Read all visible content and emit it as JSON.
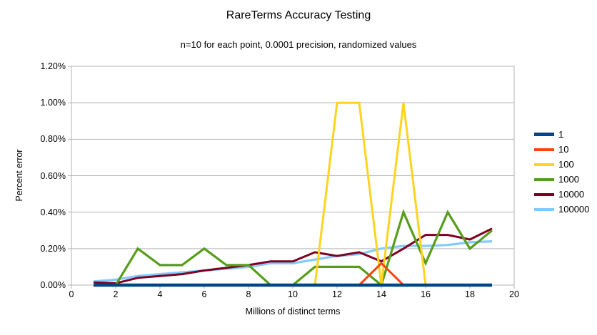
{
  "chart_data": {
    "type": "line",
    "title": "RareTerms Accuracy Testing",
    "subtitle": "n=10 for each point, 0.0001 precision, randomized values",
    "xlabel": "Millions of distinct terms",
    "ylabel": "Percent error",
    "xlim": [
      0,
      20
    ],
    "ylim_percent": [
      0,
      1.2
    ],
    "grid": "horizontal",
    "legend_position": "right",
    "x_tick_values": [
      0,
      2,
      4,
      6,
      8,
      10,
      12,
      14,
      16,
      18,
      20
    ],
    "x_tick_labels": [
      "0",
      "2",
      "4",
      "6",
      "8",
      "10",
      "12",
      "14",
      "16",
      "18",
      "20"
    ],
    "y_tick_values_percent": [
      0,
      0.2,
      0.4,
      0.6,
      0.8,
      1.0,
      1.2
    ],
    "y_tick_labels": [
      "0.00%",
      "0.20%",
      "0.40%",
      "0.60%",
      "0.80%",
      "1.00%",
      "1.20%"
    ],
    "x": [
      1,
      2,
      3,
      4,
      5,
      6,
      7,
      8,
      9,
      10,
      11,
      12,
      13,
      14,
      15,
      16,
      17,
      18,
      19
    ],
    "series": [
      {
        "name": "1",
        "color": "#004586",
        "line_width": 4.5,
        "values_percent": [
          0,
          0,
          0,
          0,
          0,
          0,
          0,
          0,
          0,
          0,
          0,
          0,
          0,
          0,
          0,
          0,
          0,
          0,
          0
        ]
      },
      {
        "name": "10",
        "color": "#FF420E",
        "line_width": 3,
        "values_percent": [
          0,
          0,
          0,
          0,
          0,
          0,
          0,
          0,
          0,
          0,
          0,
          0,
          0,
          0.12,
          0,
          0,
          0,
          0,
          0
        ]
      },
      {
        "name": "100",
        "color": "#FFD320",
        "line_width": 3,
        "values_percent": [
          0,
          0,
          0,
          0,
          0,
          0,
          0,
          0,
          0,
          0,
          0,
          1.0,
          1.0,
          0,
          1.0,
          0,
          0,
          0,
          0
        ]
      },
      {
        "name": "1000",
        "color": "#579D1C",
        "line_width": 3.2,
        "values_percent": [
          0,
          0,
          0.2,
          0.11,
          0.11,
          0.2,
          0.11,
          0.11,
          0,
          0,
          0.1,
          0.1,
          0.1,
          0,
          0.4,
          0.12,
          0.4,
          0.2,
          0.3
        ]
      },
      {
        "name": "10000",
        "color": "#7E0021",
        "line_width": 3,
        "values_percent": [
          0.015,
          0.01,
          0.04,
          0.05,
          0.06,
          0.08,
          0.095,
          0.11,
          0.13,
          0.13,
          0.18,
          0.16,
          0.18,
          0.13,
          0.2,
          0.275,
          0.275,
          0.25,
          0.31
        ]
      },
      {
        "name": "100000",
        "color": "#83CAFF",
        "line_width": 3.2,
        "values_percent": [
          0.02,
          0.03,
          0.05,
          0.06,
          0.07,
          0.08,
          0.09,
          0.1,
          0.12,
          0.12,
          0.14,
          0.16,
          0.17,
          0.2,
          0.215,
          0.215,
          0.22,
          0.235,
          0.24
        ]
      }
    ]
  },
  "style": {
    "gridline_color": "#b3b3b3",
    "plot_border_color": "#b3b3b3",
    "background": "#ffffff",
    "text_color": "#000000"
  }
}
